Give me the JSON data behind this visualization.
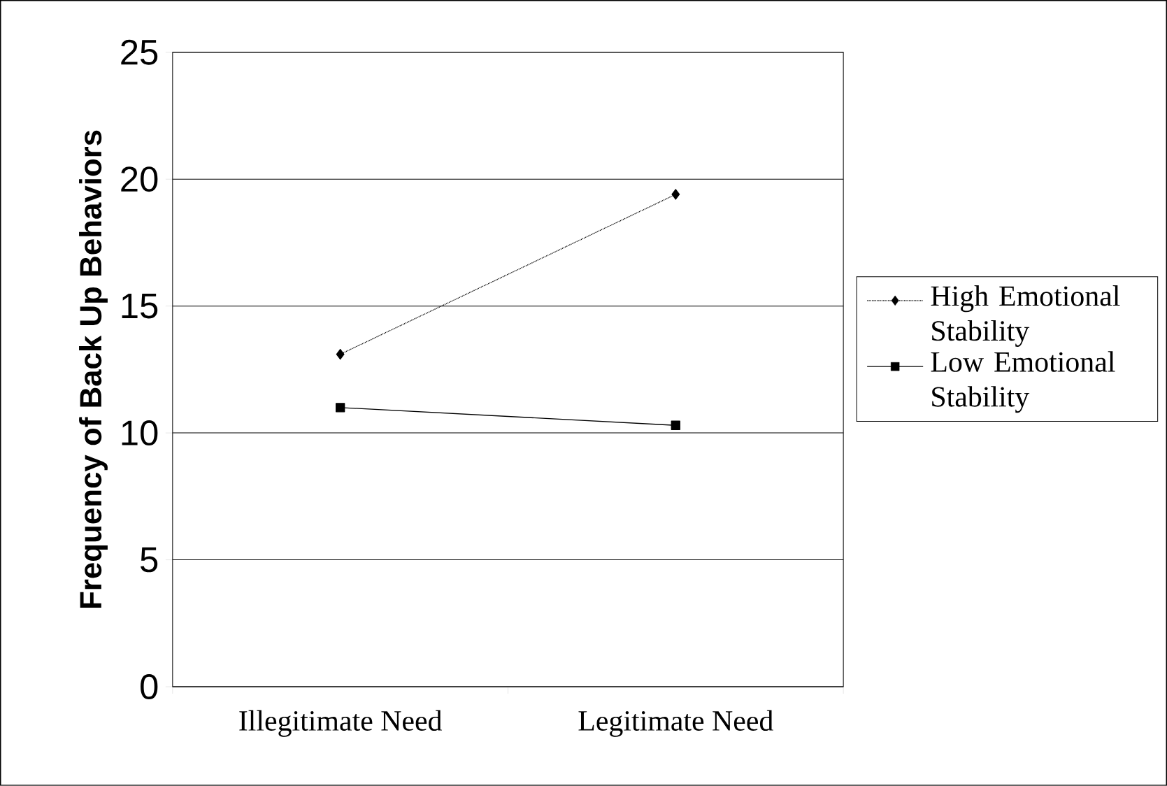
{
  "chart_data": {
    "type": "line",
    "ylabel": "Frequency of Back Up Behaviors",
    "categories": [
      "Illegitimate Need",
      "Legitimate Need"
    ],
    "series": [
      {
        "name": "High Emotional Stability",
        "color": "#000000",
        "values": [
          13.1,
          19.4
        ],
        "marker": "diamond",
        "line_style": "dotted"
      },
      {
        "name": "Low Emotional Stability",
        "color": "#000000",
        "values": [
          11.0,
          10.3
        ],
        "marker": "square",
        "line_style": "solid"
      }
    ],
    "ylim": [
      0,
      25
    ],
    "yticks": [
      0,
      5,
      10,
      15,
      20,
      25
    ],
    "grid": "y",
    "legend": "right"
  }
}
